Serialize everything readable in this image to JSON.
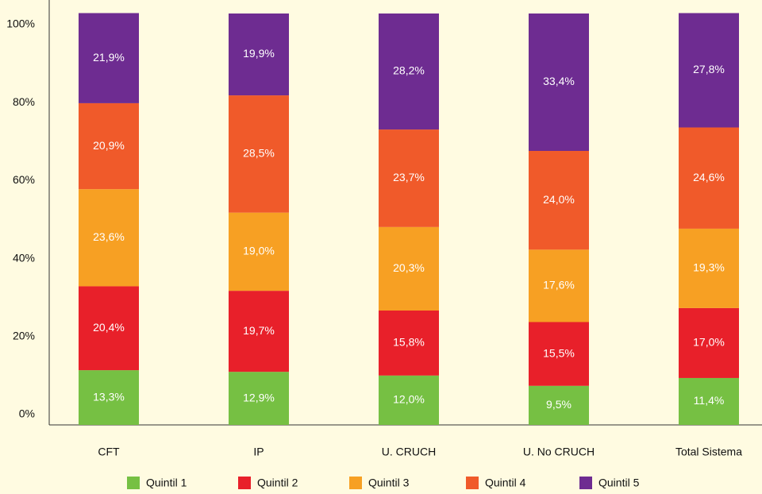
{
  "chart_data": {
    "type": "stacked_bar",
    "categories": [
      "CFT",
      "IP",
      "U. CRUCH",
      "U. No CRUCH",
      "Total Sistema"
    ],
    "series": [
      {
        "name": "Quintil 1",
        "color": "#76c043",
        "values": [
          13.3,
          12.9,
          12.0,
          9.5,
          11.4
        ],
        "value_labels": [
          "13,3%",
          "12,9%",
          "12,0%",
          "9,5%",
          "11,4%"
        ]
      },
      {
        "name": "Quintil 2",
        "color": "#e8202a",
        "values": [
          20.4,
          19.7,
          15.8,
          15.5,
          17.0
        ],
        "value_labels": [
          "20,4%",
          "19,7%",
          "15,8%",
          "15,5%",
          "17,0%"
        ]
      },
      {
        "name": "Quintil 3",
        "color": "#f7a023",
        "values": [
          23.6,
          19.0,
          20.3,
          17.6,
          19.3
        ],
        "value_labels": [
          "23,6%",
          "19,0%",
          "20,3%",
          "17,6%",
          "19,3%"
        ]
      },
      {
        "name": "Quintil 4",
        "color": "#f05a2a",
        "values": [
          20.9,
          28.5,
          23.7,
          24.0,
          24.6
        ],
        "value_labels": [
          "20,9%",
          "28,5%",
          "23,7%",
          "24,0%",
          "24,6%"
        ]
      },
      {
        "name": "Quintil 5",
        "color": "#6e2c91",
        "values": [
          21.9,
          19.9,
          28.2,
          33.4,
          27.8
        ],
        "value_labels": [
          "21,9%",
          "19,9%",
          "28,2%",
          "33,4%",
          "27,8%"
        ]
      }
    ],
    "ylim": [
      0,
      100
    ],
    "yticks": [
      {
        "value": 0,
        "label": "0%"
      },
      {
        "value": 20,
        "label": "20%"
      },
      {
        "value": 40,
        "label": "40%"
      },
      {
        "value": 60,
        "label": "60%"
      },
      {
        "value": 80,
        "label": "80%"
      },
      {
        "value": 100,
        "label": "100%"
      }
    ],
    "legend": "bottom"
  }
}
